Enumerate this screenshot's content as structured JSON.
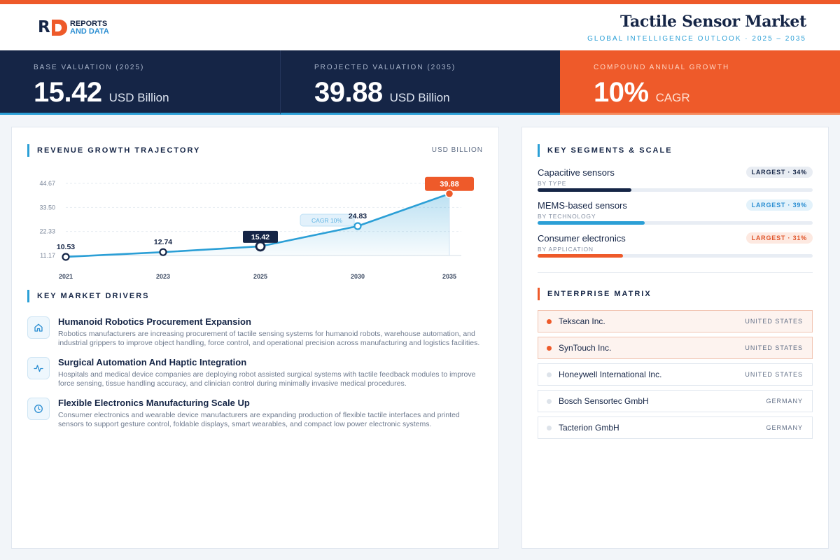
{
  "brand": {
    "line1": "REPORTS",
    "line2": "AND DATA"
  },
  "header": {
    "title": "Tactile Sensor Market",
    "subtitle": "GLOBAL INTELLIGENCE OUTLOOK  ·  2025 – 2035"
  },
  "colors": {
    "navy": "#152546",
    "accent": "#ee5a2a",
    "blue": "#2b9fd6"
  },
  "kpis": [
    {
      "label": "BASE VALUATION (2025)",
      "value": "15.42",
      "unit": "USD Billion"
    },
    {
      "label": "PROJECTED VALUATION (2035)",
      "value": "39.88",
      "unit": "USD Billion"
    },
    {
      "label": "COMPOUND ANNUAL GROWTH",
      "value": "10%",
      "unit": "CAGR"
    }
  ],
  "revenue": {
    "title": "REVENUE GROWTH TRAJECTORY",
    "unit": "USD BILLION"
  },
  "chart_data": {
    "type": "line",
    "title": "REVENUE GROWTH TRAJECTORY",
    "ylabel": "USD BILLION",
    "categories": [
      "2021",
      "2023",
      "2025",
      "2030",
      "2035"
    ],
    "values": [
      10.53,
      12.74,
      15.42,
      24.83,
      39.88
    ],
    "value_labels": [
      "10.53",
      "12.74",
      "15.42",
      "24.83",
      "39.88"
    ],
    "yticks": [
      "11.17",
      "22.33",
      "33.50",
      "44.67"
    ],
    "ytick_values": [
      11.17,
      22.33,
      33.5,
      44.67
    ],
    "ylim": [
      11.17,
      44.67
    ],
    "annotation": "CAGR 10%",
    "highlight": {
      "base": "2025",
      "final": "2035"
    },
    "grid": true,
    "area_fill": true
  },
  "drivers": {
    "title": "KEY MARKET DRIVERS",
    "items": [
      {
        "icon": "home-icon",
        "title": "Humanoid Robotics Procurement Expansion",
        "text": "Robotics manufacturers are increasing procurement of tactile sensing systems for humanoid robots, warehouse automation, and industrial grippers to improve object handling, force control, and operational precision across manufacturing and logistics facilities."
      },
      {
        "icon": "pulse-icon",
        "title": "Surgical Automation And Haptic Integration",
        "text": "Hospitals and medical device companies are deploying robot assisted surgical systems with tactile feedback modules to improve force sensing, tissue handling accuracy, and clinician control during minimally invasive medical procedures."
      },
      {
        "icon": "clock-icon",
        "title": "Flexible Electronics Manufacturing Scale Up",
        "text": "Consumer electronics and wearable device manufacturers are expanding production of flexible tactile interfaces and printed sensors to support gesture control, foldable displays, smart wearables, and compact low power electronic systems."
      }
    ]
  },
  "segments": {
    "title": "KEY SEGMENTS & SCALE",
    "items": [
      {
        "name": "Capacitive sensors",
        "sub": "BY TYPE",
        "badge": "LARGEST · 34%",
        "share": 34,
        "color": "#152546",
        "badge_bg": "#e9edf3",
        "badge_fg": "#152546"
      },
      {
        "name": "MEMS-based sensors",
        "sub": "BY TECHNOLOGY",
        "badge": "LARGEST · 39%",
        "share": 39,
        "color": "#2b9fd6",
        "badge_bg": "#e3f2fb",
        "badge_fg": "#2b8ed2"
      },
      {
        "name": "Consumer electronics",
        "sub": "BY APPLICATION",
        "badge": "LARGEST · 31%",
        "share": 31,
        "color": "#ee5a2a",
        "badge_bg": "#fde9e1",
        "badge_fg": "#e0552a"
      }
    ]
  },
  "matrix": {
    "title": "ENTERPRISE MATRIX",
    "companies": [
      {
        "name": "Tekscan Inc.",
        "country": "UNITED STATES",
        "highlight": true
      },
      {
        "name": "SynTouch Inc.",
        "country": "UNITED STATES",
        "highlight": true
      },
      {
        "name": "Honeywell International Inc.",
        "country": "UNITED STATES",
        "highlight": false
      },
      {
        "name": "Bosch Sensortec GmbH",
        "country": "GERMANY",
        "highlight": false
      },
      {
        "name": "Tacterion GmbH",
        "country": "GERMANY",
        "highlight": false
      }
    ]
  }
}
